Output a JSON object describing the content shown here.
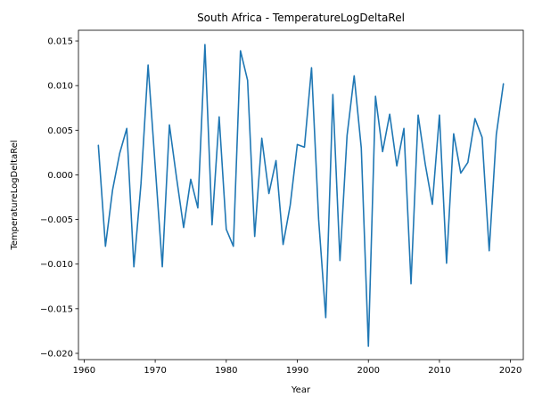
{
  "chart_data": {
    "type": "line",
    "title": "South Africa - TemperatureLogDeltaRel",
    "xlabel": "Year",
    "ylabel": "TemperatureLogDeltaRel",
    "xlim": [
      1959.2,
      2021.8
    ],
    "ylim": [
      -0.0207,
      0.0162
    ],
    "xticks": [
      1960,
      1970,
      1980,
      1990,
      2000,
      2010,
      2020
    ],
    "yticks": [
      -0.02,
      -0.015,
      -0.01,
      -0.005,
      0.0,
      0.005,
      0.01,
      0.015
    ],
    "xtick_labels": [
      "1960",
      "1970",
      "1980",
      "1990",
      "2000",
      "2010",
      "2020"
    ],
    "ytick_labels": [
      "−0.020",
      "−0.015",
      "−0.010",
      "−0.005",
      "0.000",
      "0.005",
      "0.010",
      "0.015"
    ],
    "grid": false,
    "color": "#1f77b4",
    "series": [
      {
        "x": [
          1962,
          1963,
          1964,
          1965,
          1966,
          1967,
          1968,
          1969,
          1970,
          1971,
          1972,
          1973,
          1974,
          1975,
          1976,
          1977,
          1978,
          1979,
          1980,
          1981,
          1982,
          1983,
          1984,
          1985,
          1986,
          1987,
          1988,
          1989,
          1990,
          1991,
          1992,
          1993,
          1994,
          1995,
          1996,
          1997,
          1998,
          1999,
          2000,
          2001,
          2002,
          2003,
          2004,
          2005,
          2006,
          2007,
          2008,
          2009,
          2010,
          2011,
          2012,
          2013,
          2014,
          2015,
          2016,
          2017,
          2018,
          2019
        ],
        "values": [
          0.0033,
          -0.008,
          -0.0017,
          0.0024,
          0.0052,
          -0.0103,
          -0.001,
          0.0123,
          0.001,
          -0.0103,
          0.0056,
          -0.0003,
          -0.0059,
          -0.0005,
          -0.0037,
          0.0146,
          -0.0056,
          0.0065,
          -0.0061,
          -0.008,
          0.0139,
          0.0106,
          -0.0069,
          0.0041,
          -0.0021,
          0.0016,
          -0.0078,
          -0.0034,
          0.0034,
          0.0031,
          0.012,
          -0.005,
          -0.016,
          0.009,
          -0.0096,
          0.0044,
          0.0111,
          0.003,
          -0.0192,
          0.0088,
          0.0026,
          0.0068,
          0.001,
          0.0052,
          -0.0122,
          0.0067,
          0.0012,
          -0.0033,
          0.0067,
          -0.0099,
          0.0046,
          0.0002,
          0.0014,
          0.0063,
          0.0042,
          -0.0085,
          0.0045,
          0.0102
        ]
      }
    ]
  }
}
